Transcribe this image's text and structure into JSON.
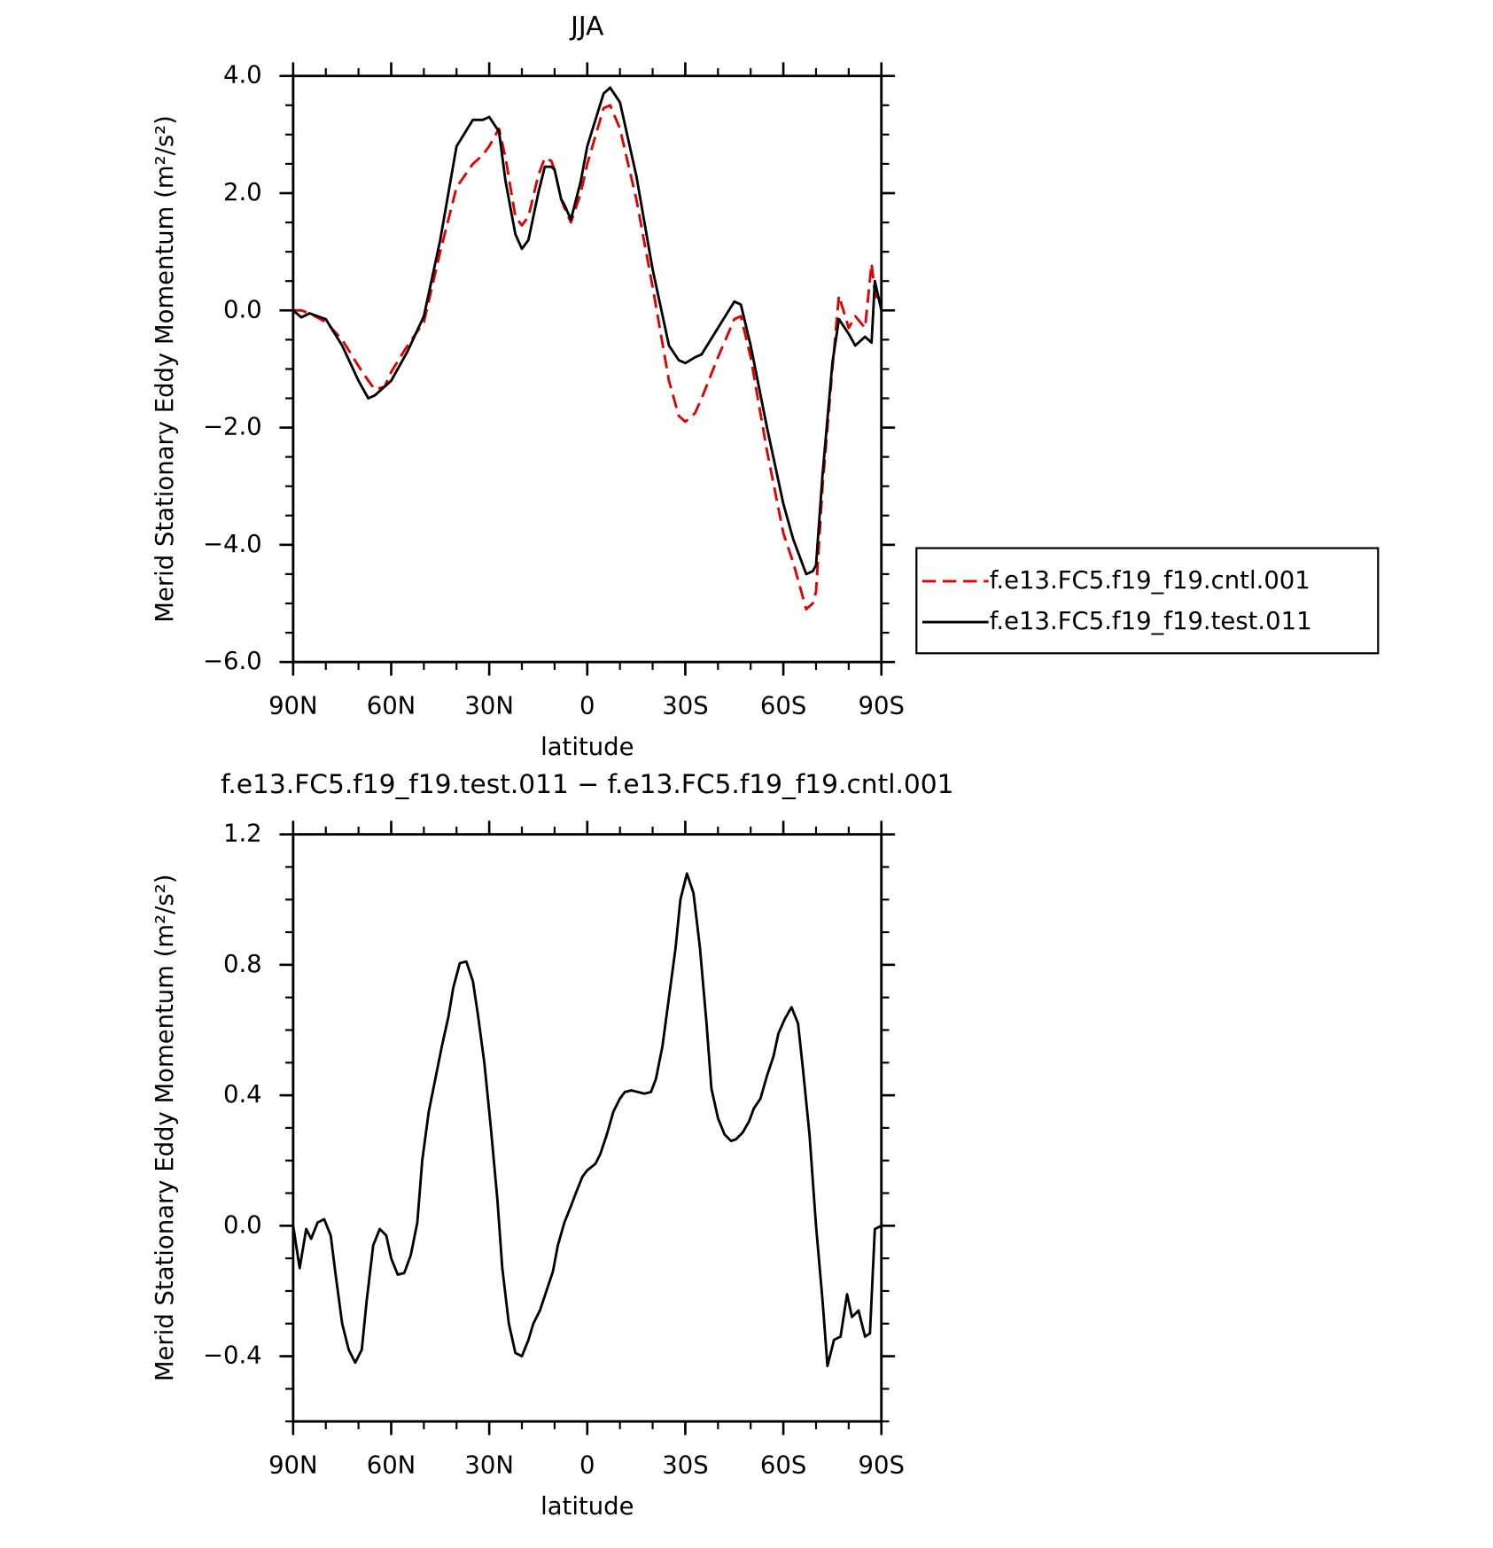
{
  "chart_data": [
    {
      "type": "line",
      "title": "JJA",
      "x_label": "latitude",
      "y_label": "Merid Stationary Eddy Momentum (m²/s²)",
      "xlim": [
        90,
        -90
      ],
      "xticks": [
        {
          "value": 90,
          "label": "90N"
        },
        {
          "value": 60,
          "label": "60N"
        },
        {
          "value": 30,
          "label": "30N"
        },
        0,
        {
          "value": -30,
          "label": "30S"
        },
        {
          "value": -60,
          "label": "60S"
        },
        {
          "value": -90,
          "label": "90S"
        }
      ],
      "ylim": [
        -6,
        4
      ],
      "yticks": [
        {
          "value": -6,
          "label": "−6.0"
        },
        {
          "value": -4,
          "label": "−4.0"
        },
        {
          "value": -2,
          "label": "−2.0"
        },
        {
          "value": 0,
          "label": "0.0"
        },
        {
          "value": 2,
          "label": "2.0"
        },
        {
          "value": 4,
          "label": "4.0"
        }
      ],
      "legend": "right",
      "x": [
        90,
        87.5,
        85,
        80,
        75,
        70,
        67,
        65,
        62,
        60,
        55,
        50,
        45,
        40,
        35,
        32,
        30,
        27,
        25,
        22,
        20,
        18,
        15,
        13,
        11,
        10,
        8,
        7,
        5,
        2,
        0,
        -5,
        -7,
        -10,
        -15,
        -20,
        -25,
        -28,
        -30,
        -33,
        -35,
        -40,
        -45,
        -47,
        -50,
        -55,
        -60,
        -63,
        -65,
        -67,
        -69,
        -70,
        -72,
        -75,
        -77,
        -80,
        -82,
        -85,
        -87,
        -88,
        -90
      ],
      "series": [
        {
          "name": "f.e13.FC5.f19_f19.cntl.001",
          "color": "#e00000",
          "dash": "dashed",
          "values": [
            0,
            0,
            -0.05,
            -0.2,
            -0.5,
            -0.95,
            -1.2,
            -1.35,
            -1.3,
            -1.05,
            -0.6,
            -0.2,
            1.0,
            2.1,
            2.5,
            2.65,
            2.8,
            3.1,
            2.6,
            1.6,
            1.45,
            1.6,
            2.3,
            2.6,
            2.55,
            2.4,
            1.9,
            1.75,
            1.5,
            2.0,
            2.5,
            3.45,
            3.5,
            3.1,
            1.9,
            0.4,
            -1.2,
            -1.8,
            -1.9,
            -1.75,
            -1.5,
            -0.8,
            -0.15,
            -0.1,
            -0.8,
            -2.4,
            -3.8,
            -4.3,
            -4.7,
            -5.1,
            -5.0,
            -4.8,
            -3.0,
            -1.0,
            0.25,
            -0.3,
            -0.1,
            -0.3,
            0.8,
            0.3,
            0.05
          ]
        },
        {
          "name": "f.e13.FC5.f19_f19.test.011",
          "color": "#000000",
          "dash": "solid",
          "values": [
            0,
            -0.12,
            -0.05,
            -0.15,
            -0.6,
            -1.2,
            -1.5,
            -1.45,
            -1.3,
            -1.2,
            -0.7,
            -0.1,
            1.2,
            2.8,
            3.25,
            3.25,
            3.3,
            3.05,
            2.2,
            1.3,
            1.05,
            1.2,
            2.0,
            2.45,
            2.45,
            2.4,
            1.9,
            1.8,
            1.55,
            2.2,
            2.8,
            3.7,
            3.8,
            3.55,
            2.3,
            0.7,
            -0.6,
            -0.85,
            -0.9,
            -0.8,
            -0.75,
            -0.3,
            0.15,
            0.1,
            -0.6,
            -2.0,
            -3.3,
            -3.9,
            -4.2,
            -4.5,
            -4.45,
            -4.35,
            -2.8,
            -0.9,
            -0.15,
            -0.4,
            -0.6,
            -0.45,
            -0.55,
            0.5,
            0.0
          ]
        }
      ]
    },
    {
      "type": "line",
      "title": "f.e13.FC5.f19_f19.test.011 − f.e13.FC5.f19_f19.cntl.001",
      "x_label": "latitude",
      "y_label": "Merid Stationary Eddy Momentum (m²/s²)",
      "xlim": [
        90,
        -90
      ],
      "xticks": [
        {
          "value": 90,
          "label": "90N"
        },
        {
          "value": 60,
          "label": "60N"
        },
        {
          "value": 30,
          "label": "30N"
        },
        0,
        {
          "value": -30,
          "label": "30S"
        },
        {
          "value": -60,
          "label": "60S"
        },
        {
          "value": -90,
          "label": "90S"
        }
      ],
      "ylim": [
        -0.6,
        1.2
      ],
      "yticks": [
        {
          "value": -0.4,
          "label": "−0.4"
        },
        {
          "value": 0,
          "label": "0.0"
        },
        0.4,
        0.8,
        1.2
      ],
      "x": [
        90,
        88,
        86,
        84.5,
        82.5,
        80.5,
        78.5,
        77,
        75,
        73,
        71,
        69,
        67.5,
        65.5,
        63.5,
        61.5,
        60,
        58,
        56,
        54,
        52,
        50.5,
        48.5,
        46.5,
        44.5,
        42.5,
        41,
        39,
        37,
        35,
        33.5,
        31.5,
        29.5,
        27.5,
        26,
        24,
        22,
        20,
        18,
        16.5,
        14.5,
        12.5,
        10.5,
        9,
        7,
        5,
        3.5,
        1.5,
        0,
        -2.5,
        -4,
        -6,
        -8,
        -10,
        -11.5,
        -13.5,
        -15.5,
        -17.5,
        -19.5,
        -21,
        -23,
        -25,
        -27,
        -28.5,
        -30.5,
        -32.5,
        -34.5,
        -36.5,
        -38,
        -40,
        -42,
        -44,
        -45.5,
        -47.5,
        -49.5,
        -51,
        -53,
        -55,
        -57,
        -58.5,
        -60.5,
        -62.5,
        -64.5,
        -66,
        -68,
        -70,
        -72,
        -73.5,
        -75.5,
        -77.5,
        -79.5,
        -81,
        -83,
        -85,
        -86.5,
        -88,
        -90
      ],
      "series": [
        {
          "name": "f.e13.FC5.f19_f19.test.011 − f.e13.FC5.f19_f19.cntl.001",
          "color": "#000000",
          "dash": "solid",
          "values": [
            0,
            -0.13,
            -0.01,
            -0.04,
            0.01,
            0.02,
            -0.03,
            -0.15,
            -0.3,
            -0.38,
            -0.42,
            -0.38,
            -0.23,
            -0.06,
            -0.01,
            -0.03,
            -0.1,
            -0.15,
            -0.145,
            -0.09,
            0.01,
            0.2,
            0.35,
            0.45,
            0.55,
            0.64,
            0.73,
            0.805,
            0.81,
            0.75,
            0.65,
            0.5,
            0.3,
            0.08,
            -0.13,
            -0.3,
            -0.39,
            -0.4,
            -0.35,
            -0.3,
            -0.26,
            -0.2,
            -0.14,
            -0.06,
            0.01,
            0.06,
            0.1,
            0.15,
            0.17,
            0.19,
            0.22,
            0.28,
            0.35,
            0.39,
            0.41,
            0.415,
            0.41,
            0.405,
            0.41,
            0.45,
            0.55,
            0.7,
            0.85,
            1.0,
            1.08,
            1.02,
            0.85,
            0.62,
            0.42,
            0.33,
            0.28,
            0.26,
            0.265,
            0.285,
            0.32,
            0.36,
            0.39,
            0.46,
            0.52,
            0.59,
            0.635,
            0.67,
            0.62,
            0.48,
            0.28,
            0.0,
            -0.23,
            -0.43,
            -0.35,
            -0.34,
            -0.21,
            -0.28,
            -0.26,
            -0.34,
            -0.33,
            -0.01,
            0
          ]
        }
      ]
    }
  ]
}
